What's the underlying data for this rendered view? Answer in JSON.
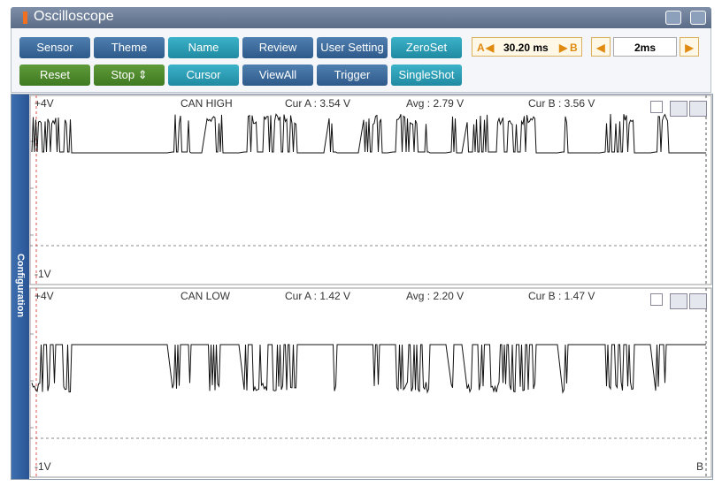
{
  "header": {
    "title": "Oscilloscope"
  },
  "toolbar": {
    "row1": [
      "Sensor",
      "Theme",
      "Name",
      "Review",
      "User Setting",
      "ZeroSet"
    ],
    "row2": [
      "Reset",
      "Stop",
      "Cursor",
      "ViewAll",
      "Trigger",
      "SingleShot"
    ]
  },
  "cursor": {
    "a": "A",
    "time": "30.20 ms",
    "b": "B"
  },
  "timebase": "2ms",
  "sidebar": "Configuration",
  "channels": [
    {
      "top": "+4V",
      "name": "CAN HIGH",
      "cur_a": "Cur A : 3.54 V",
      "avg": "Avg : 2.79 V",
      "cur_b": "Cur B : 3.56 V",
      "bottom": "-1V"
    },
    {
      "top": "+4V",
      "name": "CAN LOW",
      "cur_a": "Cur A : 1.42 V",
      "avg": "Avg : 2.20 V",
      "cur_b": "Cur B : 1.47 V",
      "bottom": "-1V",
      "marker": "B"
    }
  ]
}
